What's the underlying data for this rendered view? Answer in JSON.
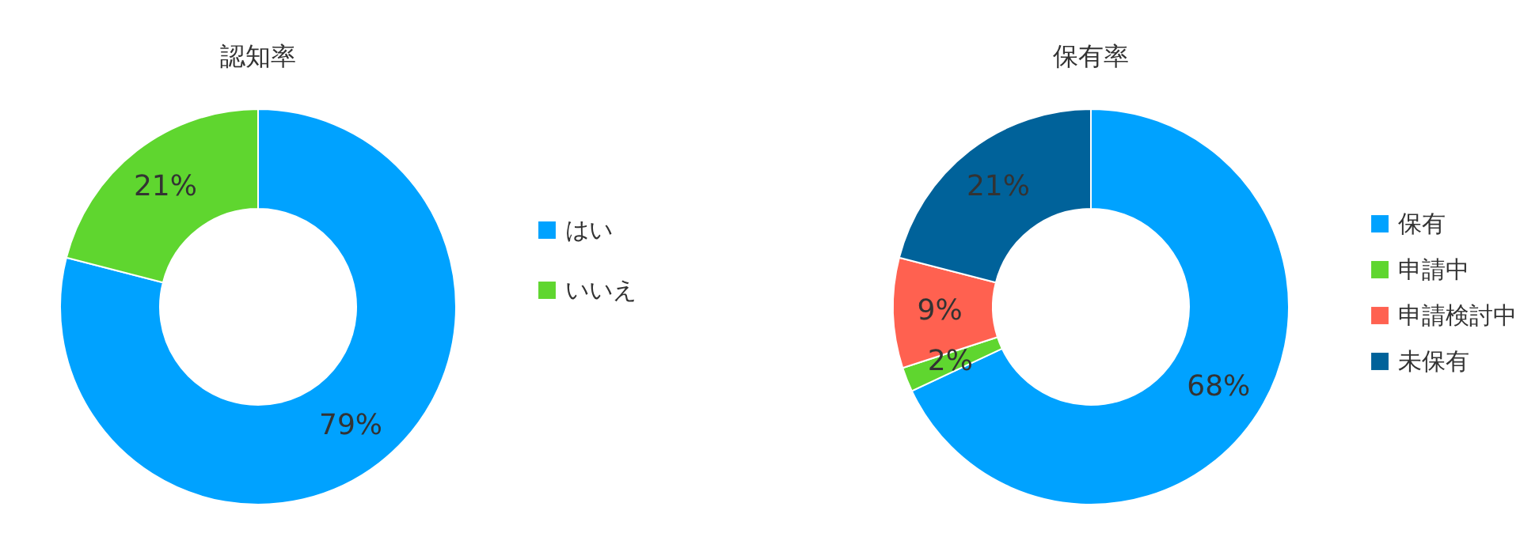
{
  "chart_data": [
    {
      "type": "donut",
      "title": "認知率",
      "categories": [
        "はい",
        "いいえ"
      ],
      "values": [
        79,
        21
      ],
      "colors": [
        "#00a2ff",
        "#5fd62f"
      ],
      "value_labels": [
        "79%",
        "21%"
      ],
      "legend": "right"
    },
    {
      "type": "donut",
      "title": "保有率",
      "categories": [
        "保有",
        "申請中",
        "申請検討中",
        "未保有"
      ],
      "values": [
        68,
        2,
        9,
        21
      ],
      "colors": [
        "#00a2ff",
        "#5fd62f",
        "#ff6150",
        "#00629a"
      ],
      "value_labels": [
        "68%",
        "2%",
        "9%",
        "21%"
      ],
      "legend": "right"
    }
  ]
}
